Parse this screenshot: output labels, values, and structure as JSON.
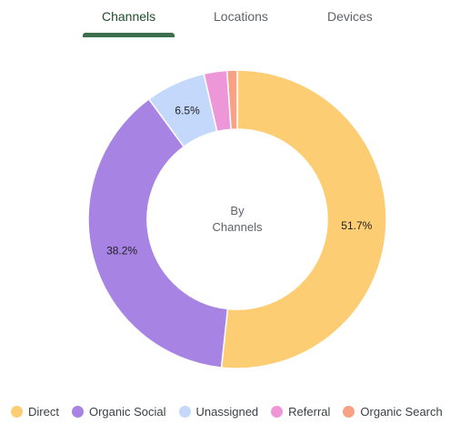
{
  "tabs": [
    {
      "label": "Channels",
      "active": true
    },
    {
      "label": "Locations",
      "active": false
    },
    {
      "label": "Devices",
      "active": false
    }
  ],
  "center": {
    "line1": "By",
    "line2": "Channels"
  },
  "colors": {
    "tab_indicator": "#3c6e4b",
    "background": "#ffffff"
  },
  "chart_data": {
    "type": "pie",
    "donut": true,
    "categories": [
      "Direct",
      "Organic Social",
      "Unassigned",
      "Referral",
      "Organic Search"
    ],
    "values": [
      51.7,
      38.2,
      6.5,
      2.5,
      1.1
    ],
    "data_labels": [
      "51.7%",
      "38.2%",
      "6.5%",
      "",
      ""
    ],
    "colors": [
      "#fdcd73",
      "#a783e4",
      "#c4d8fc",
      "#ee97d8",
      "#f8a285"
    ],
    "legend_position": "bottom"
  }
}
